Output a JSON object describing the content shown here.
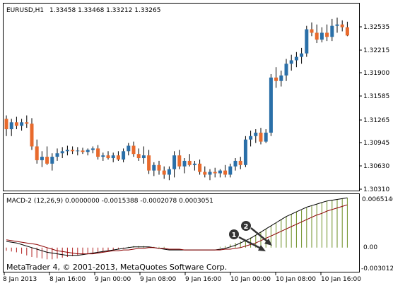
{
  "window": {
    "symbol_title": "EURUSD,H1",
    "ohlc": "1.33458 1.33468 1.33212 1.33265",
    "copyright": "MetaTrader 4, © 2001-2013, MetaQuotes Software Corp."
  },
  "colors": {
    "bull": "#2a6fa8",
    "bear": "#e86a2c",
    "macd_hist_pos": "#6b8e23",
    "macd_hist_neg": "#b22222",
    "macd_line": "#000000",
    "signal_line": "#8b0000"
  },
  "price_axis": {
    "ticks": [
      "1.32535",
      "1.32215",
      "1.31900",
      "1.31585",
      "1.31265",
      "1.30945",
      "1.30630",
      "1.30310"
    ]
  },
  "time_axis": {
    "ticks": [
      "8 Jan 2013",
      "8 Jan 16:00",
      "9 Jan 00:00",
      "9 Jan 08:00",
      "9 Jan 16:00",
      "10 Jan 00:00",
      "10 Jan 08:00",
      "10 Jan 16:00"
    ]
  },
  "macd_panel": {
    "title": "MACD-2 (12,26,9) 0.0000000 -0.0015388 -0.0002078 0.0003051",
    "ticks": [
      "0.0065140",
      "0.00",
      "-0.0030126"
    ]
  },
  "annotations": {
    "marker_1": "1",
    "marker_2": "2"
  },
  "chart_data": [
    {
      "type": "candlestick",
      "title": "EURUSD,H1",
      "ylim": [
        1.3025,
        1.3275
      ],
      "candles": [
        {
          "o": 1.3125,
          "h": 1.313,
          "l": 1.31,
          "c": 1.311
        },
        {
          "o": 1.311,
          "h": 1.3125,
          "l": 1.31,
          "c": 1.312
        },
        {
          "o": 1.312,
          "h": 1.3128,
          "l": 1.311,
          "c": 1.3115
        },
        {
          "o": 1.3115,
          "h": 1.3125,
          "l": 1.3108,
          "c": 1.312
        },
        {
          "o": 1.312,
          "h": 1.313,
          "l": 1.3112,
          "c": 1.3118
        },
        {
          "o": 1.3118,
          "h": 1.3126,
          "l": 1.308,
          "c": 1.3085
        },
        {
          "o": 1.3085,
          "h": 1.3095,
          "l": 1.306,
          "c": 1.3065
        },
        {
          "o": 1.3065,
          "h": 1.3078,
          "l": 1.3055,
          "c": 1.307
        },
        {
          "o": 1.307,
          "h": 1.3085,
          "l": 1.3058,
          "c": 1.306
        },
        {
          "o": 1.306,
          "h": 1.3075,
          "l": 1.305,
          "c": 1.307
        },
        {
          "o": 1.307,
          "h": 1.3082,
          "l": 1.3064,
          "c": 1.3075
        },
        {
          "o": 1.3075,
          "h": 1.3084,
          "l": 1.3068,
          "c": 1.3078
        },
        {
          "o": 1.3078,
          "h": 1.3086,
          "l": 1.3072,
          "c": 1.308
        },
        {
          "o": 1.308,
          "h": 1.3085,
          "l": 1.3074,
          "c": 1.3078
        },
        {
          "o": 1.3078,
          "h": 1.3084,
          "l": 1.3072,
          "c": 1.3079
        },
        {
          "o": 1.3079,
          "h": 1.3083,
          "l": 1.3074,
          "c": 1.3077
        },
        {
          "o": 1.3077,
          "h": 1.3082,
          "l": 1.3072,
          "c": 1.308
        },
        {
          "o": 1.308,
          "h": 1.3085,
          "l": 1.3075,
          "c": 1.3082
        },
        {
          "o": 1.3082,
          "h": 1.3087,
          "l": 1.3066,
          "c": 1.307
        },
        {
          "o": 1.307,
          "h": 1.3076,
          "l": 1.3064,
          "c": 1.3072
        },
        {
          "o": 1.3072,
          "h": 1.3078,
          "l": 1.3066,
          "c": 1.3068
        },
        {
          "o": 1.3068,
          "h": 1.3076,
          "l": 1.3062,
          "c": 1.3072
        },
        {
          "o": 1.3072,
          "h": 1.3078,
          "l": 1.3064,
          "c": 1.3066
        },
        {
          "o": 1.3066,
          "h": 1.3082,
          "l": 1.3062,
          "c": 1.3078
        },
        {
          "o": 1.3078,
          "h": 1.309,
          "l": 1.3072,
          "c": 1.3086
        },
        {
          "o": 1.3086,
          "h": 1.3092,
          "l": 1.307,
          "c": 1.3074
        },
        {
          "o": 1.3074,
          "h": 1.3082,
          "l": 1.3064,
          "c": 1.3068
        },
        {
          "o": 1.3068,
          "h": 1.3085,
          "l": 1.306,
          "c": 1.3072
        },
        {
          "o": 1.3072,
          "h": 1.308,
          "l": 1.3045,
          "c": 1.305
        },
        {
          "o": 1.305,
          "h": 1.3062,
          "l": 1.3042,
          "c": 1.3058
        },
        {
          "o": 1.3058,
          "h": 1.3064,
          "l": 1.3044,
          "c": 1.305
        },
        {
          "o": 1.305,
          "h": 1.3056,
          "l": 1.3038,
          "c": 1.3044
        },
        {
          "o": 1.3044,
          "h": 1.3056,
          "l": 1.3036,
          "c": 1.3052
        },
        {
          "o": 1.3052,
          "h": 1.3078,
          "l": 1.304,
          "c": 1.3072
        },
        {
          "o": 1.3072,
          "h": 1.308,
          "l": 1.3052,
          "c": 1.3056
        },
        {
          "o": 1.3056,
          "h": 1.3068,
          "l": 1.3046,
          "c": 1.3064
        },
        {
          "o": 1.3064,
          "h": 1.3074,
          "l": 1.3056,
          "c": 1.3058
        },
        {
          "o": 1.3058,
          "h": 1.3064,
          "l": 1.305,
          "c": 1.306
        },
        {
          "o": 1.306,
          "h": 1.3066,
          "l": 1.3044,
          "c": 1.3048
        },
        {
          "o": 1.3048,
          "h": 1.3056,
          "l": 1.304,
          "c": 1.3044
        },
        {
          "o": 1.3044,
          "h": 1.3052,
          "l": 1.3036,
          "c": 1.3048
        },
        {
          "o": 1.3048,
          "h": 1.3054,
          "l": 1.304,
          "c": 1.3046
        },
        {
          "o": 1.3046,
          "h": 1.3052,
          "l": 1.304,
          "c": 1.305
        },
        {
          "o": 1.305,
          "h": 1.3058,
          "l": 1.304,
          "c": 1.3044
        },
        {
          "o": 1.3044,
          "h": 1.306,
          "l": 1.304,
          "c": 1.3056
        },
        {
          "o": 1.3056,
          "h": 1.3068,
          "l": 1.305,
          "c": 1.3064
        },
        {
          "o": 1.3064,
          "h": 1.307,
          "l": 1.3052,
          "c": 1.3058
        },
        {
          "o": 1.3058,
          "h": 1.31,
          "l": 1.3055,
          "c": 1.3095
        },
        {
          "o": 1.3095,
          "h": 1.3108,
          "l": 1.3085,
          "c": 1.31
        },
        {
          "o": 1.31,
          "h": 1.311,
          "l": 1.309,
          "c": 1.3105
        },
        {
          "o": 1.3105,
          "h": 1.3112,
          "l": 1.3088,
          "c": 1.3092
        },
        {
          "o": 1.3092,
          "h": 1.311,
          "l": 1.309,
          "c": 1.3105
        },
        {
          "o": 1.3105,
          "h": 1.319,
          "l": 1.31,
          "c": 1.3185
        },
        {
          "o": 1.3185,
          "h": 1.32,
          "l": 1.317,
          "c": 1.318
        },
        {
          "o": 1.318,
          "h": 1.3195,
          "l": 1.3172,
          "c": 1.3188
        },
        {
          "o": 1.3188,
          "h": 1.3212,
          "l": 1.318,
          "c": 1.3205
        },
        {
          "o": 1.3205,
          "h": 1.3218,
          "l": 1.3195,
          "c": 1.321
        },
        {
          "o": 1.321,
          "h": 1.3222,
          "l": 1.32,
          "c": 1.3215
        },
        {
          "o": 1.3215,
          "h": 1.3228,
          "l": 1.3205,
          "c": 1.322
        },
        {
          "o": 1.322,
          "h": 1.326,
          "l": 1.3215,
          "c": 1.3255
        },
        {
          "o": 1.3255,
          "h": 1.3265,
          "l": 1.3245,
          "c": 1.325
        },
        {
          "o": 1.325,
          "h": 1.3262,
          "l": 1.3235,
          "c": 1.324
        },
        {
          "o": 1.324,
          "h": 1.3258,
          "l": 1.3236,
          "c": 1.325
        },
        {
          "o": 1.325,
          "h": 1.3262,
          "l": 1.3238,
          "c": 1.3244
        },
        {
          "o": 1.3244,
          "h": 1.327,
          "l": 1.3238,
          "c": 1.326
        },
        {
          "o": 1.326,
          "h": 1.3272,
          "l": 1.325,
          "c": 1.3262
        },
        {
          "o": 1.3262,
          "h": 1.3268,
          "l": 1.3252,
          "c": 1.3258
        },
        {
          "o": 1.3258,
          "h": 1.3266,
          "l": 1.3245,
          "c": 1.3246
        }
      ]
    },
    {
      "type": "line",
      "title": "MACD-2 (12,26,9)",
      "ylim": [
        -0.0030126,
        0.006514
      ],
      "histogram": [
        -0.0004,
        -0.0005,
        -0.0006,
        -0.0008,
        -0.001,
        -0.0012,
        -0.0013,
        -0.0014,
        -0.0015,
        -0.0015,
        -0.0014,
        -0.0013,
        -0.0012,
        -0.0011,
        -0.001,
        -0.0009,
        -0.0008,
        -0.0007,
        -0.0006,
        -0.0005,
        -0.0004,
        -0.0003,
        -0.0002,
        -0.0001,
        0.0001,
        0.0002,
        0.0002,
        0.0002,
        0.0001,
        0.0001,
        0.0001,
        0.0001,
        0.0,
        0.0,
        0.0,
        0.0,
        0.0,
        0.0,
        0.0,
        0.0,
        0.0,
        0.0,
        0.0001,
        0.0002,
        0.0004,
        0.0006,
        0.0008,
        0.001,
        0.0013,
        0.0016,
        0.002,
        0.0024,
        0.0028,
        0.0032,
        0.0036,
        0.004,
        0.0043,
        0.0046,
        0.0048,
        0.0051,
        0.0054,
        0.0056,
        0.0058,
        0.006,
        0.0061,
        0.0062,
        0.0063,
        0.0064
      ],
      "series": [
        {
          "name": "",
          "values": [
            0.0008,
            0.0007,
            0.0006,
            0.0004,
            0.0002,
            0.0,
            -0.0002,
            -0.0004,
            -0.0006,
            -0.0007,
            -0.0008,
            -0.0009,
            -0.001,
            -0.001,
            -0.001,
            -0.0009,
            -0.0008,
            -0.0007,
            -0.0006,
            -0.0005,
            -0.0004,
            -0.0003,
            -0.0002,
            -0.0001,
            0.0,
            0.0001,
            0.0001,
            0.0001,
            0.0001,
            0.0,
            -0.0001,
            -0.0002,
            -0.0003,
            -0.0003,
            -0.0003,
            -0.0003,
            -0.0003,
            -0.0003,
            -0.0003,
            -0.0003,
            -0.0003,
            -0.0003,
            -0.0002,
            -0.0001,
            0.0001,
            0.0003,
            0.0006,
            0.0009,
            0.0012,
            0.0016,
            0.002,
            0.0024,
            0.0028,
            0.0032,
            0.0036,
            0.004,
            0.0043,
            0.0046,
            0.0049,
            0.0052,
            0.0054,
            0.0056,
            0.0058,
            0.006,
            0.0061,
            0.0062,
            0.0063,
            0.0064
          ]
        },
        {
          "name": "",
          "values": [
            0.001,
            0.0009,
            0.0008,
            0.0007,
            0.0006,
            0.0005,
            0.0004,
            0.0002,
            0.0,
            -0.0002,
            -0.0004,
            -0.0005,
            -0.0006,
            -0.0007,
            -0.0008,
            -0.0008,
            -0.0008,
            -0.0008,
            -0.0007,
            -0.0006,
            -0.0005,
            -0.0004,
            -0.0004,
            -0.0003,
            -0.0003,
            -0.0002,
            -0.0001,
            -0.0001,
            0.0,
            0.0,
            -0.0001,
            -0.0001,
            -0.0002,
            -0.0002,
            -0.0002,
            -0.0003,
            -0.0003,
            -0.0003,
            -0.0003,
            -0.0003,
            -0.0003,
            -0.0003,
            -0.0003,
            -0.0002,
            -0.0002,
            -0.0001,
            0.0,
            0.0002,
            0.0004,
            0.0006,
            0.0009,
            0.0012,
            0.0015,
            0.0018,
            0.0021,
            0.0024,
            0.0027,
            0.003,
            0.0033,
            0.0036,
            0.0039,
            0.0042,
            0.0044,
            0.0047,
            0.0049,
            0.0051,
            0.0053,
            0.0055
          ]
        }
      ]
    }
  ]
}
